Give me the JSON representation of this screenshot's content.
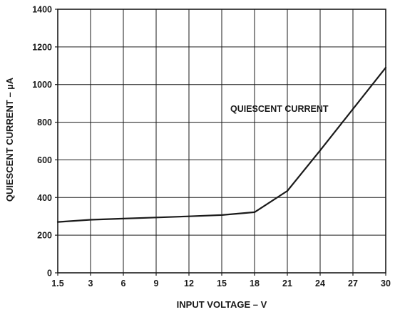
{
  "chart_data": {
    "type": "line",
    "xlabel": "INPUT VOLTAGE – V",
    "ylabel": "QUIESCENT CURRENT – µA",
    "x_ticks": [
      "1.5",
      "3",
      "6",
      "9",
      "12",
      "15",
      "18",
      "21",
      "24",
      "27",
      "30"
    ],
    "y_ticks": [
      "0",
      "200",
      "400",
      "600",
      "800",
      "1000",
      "1200",
      "1400"
    ],
    "ylim": [
      0,
      1400
    ],
    "grid": true,
    "series": [
      {
        "name": "QUIESCENT CURRENT",
        "x": [
          1.5,
          3,
          6,
          9,
          12,
          15,
          18,
          21,
          24,
          27,
          30
        ],
        "y": [
          270,
          282,
          288,
          294,
          300,
          307,
          322,
          435,
          650,
          870,
          1090
        ]
      }
    ],
    "annotations": [
      {
        "text": "QUIESCENT CURRENT"
      }
    ],
    "colors": {
      "line": "#1a1a1a",
      "grid": "#1a1a1a",
      "background": "#ffffff"
    }
  }
}
